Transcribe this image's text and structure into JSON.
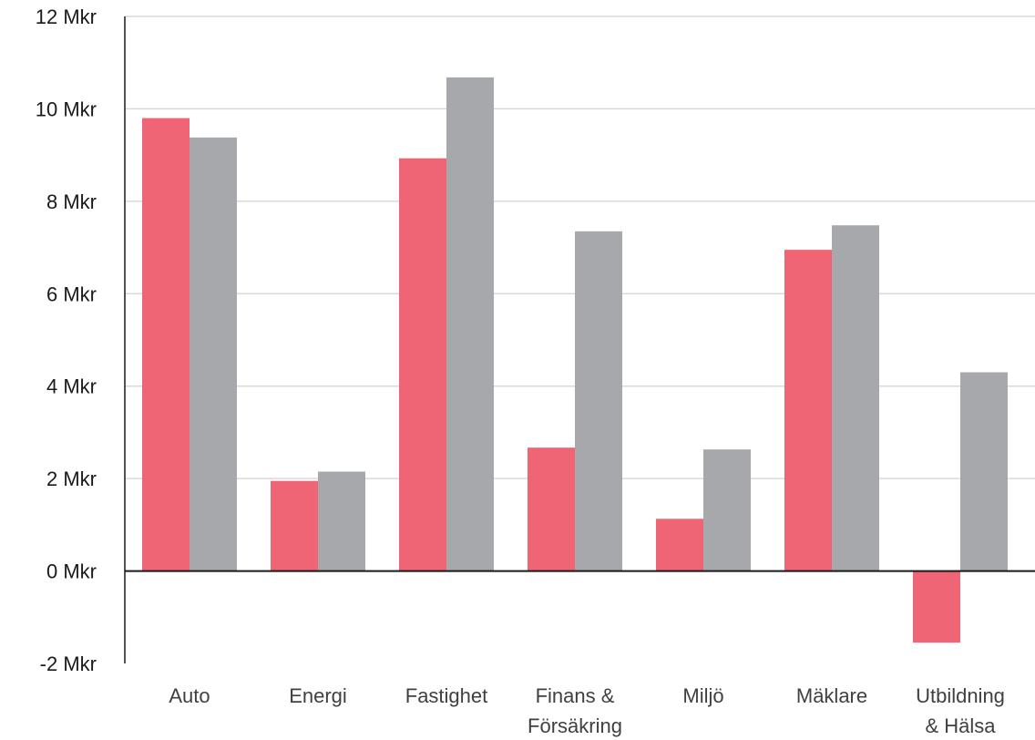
{
  "chart_data": {
    "type": "bar",
    "title": "",
    "xlabel": "",
    "ylabel": "",
    "categories": [
      [
        "Auto"
      ],
      [
        "Energi"
      ],
      [
        "Fastighet"
      ],
      [
        "Finans &",
        "Försäkring"
      ],
      [
        "Miljö"
      ],
      [
        "Mäklare"
      ],
      [
        "Utbildning",
        "& Hälsa"
      ]
    ],
    "series": [
      {
        "color": "#f06575",
        "values": [
          9.8,
          1.95,
          8.93,
          2.67,
          1.13,
          6.95,
          -1.55
        ]
      },
      {
        "color": "#a7a8ac",
        "values": [
          9.38,
          2.15,
          10.68,
          7.35,
          2.63,
          7.48,
          4.3
        ]
      }
    ],
    "ylim": [
      -2,
      12
    ],
    "yticks": [
      12,
      10,
      8,
      6,
      4,
      2,
      0,
      -2
    ],
    "ytick_labels": [
      "12 Mkr",
      "10 Mkr",
      "8 Mkr",
      "6 Mkr",
      "4 Mkr",
      "2 Mkr",
      "0 Mkr",
      "-2 Mkr"
    ],
    "grid": true,
    "legend": "none"
  }
}
